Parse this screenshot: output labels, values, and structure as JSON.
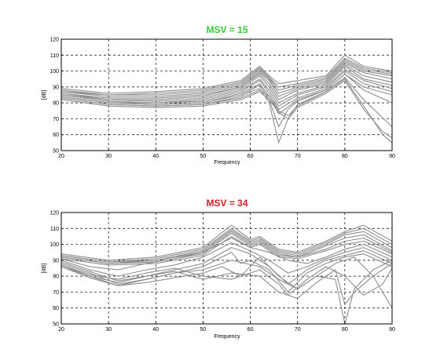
{
  "chart_data": [
    {
      "type": "line",
      "title": "MSV = 15",
      "title_color": "#33cc33",
      "xlabel": "Frequency",
      "ylabel": "[dB]",
      "xlim": [
        20,
        90
      ],
      "ylim": [
        50,
        120
      ],
      "xticks": [
        20,
        30,
        40,
        50,
        60,
        70,
        80,
        90
      ],
      "yticks": [
        50,
        60,
        70,
        80,
        90,
        100,
        110,
        120
      ],
      "grid": true,
      "grid_style": "dashed",
      "line_color": "#8c8c8c",
      "series": [
        {
          "x": [
            20,
            30,
            40,
            50,
            58,
            62,
            64,
            66,
            70,
            76,
            80,
            84,
            90
          ],
          "y": [
            89,
            86,
            87,
            89,
            94,
            103,
            97,
            92,
            94,
            97,
            110,
            103,
            100
          ]
        },
        {
          "x": [
            20,
            30,
            40,
            50,
            58,
            62,
            64,
            66,
            70,
            76,
            80,
            84,
            90
          ],
          "y": [
            88,
            85,
            86,
            88,
            93,
            102,
            96,
            90,
            92,
            96,
            108,
            102,
            99
          ]
        },
        {
          "x": [
            20,
            30,
            40,
            50,
            58,
            62,
            64,
            66,
            70,
            76,
            80,
            84,
            90
          ],
          "y": [
            87,
            85,
            85,
            87,
            92,
            101,
            96,
            88,
            91,
            95,
            107,
            101,
            98
          ]
        },
        {
          "x": [
            20,
            30,
            40,
            50,
            58,
            62,
            64,
            66,
            70,
            76,
            80,
            84,
            90
          ],
          "y": [
            87,
            84,
            84,
            86,
            91,
            100,
            95,
            86,
            90,
            94,
            106,
            100,
            97
          ]
        },
        {
          "x": [
            20,
            30,
            40,
            50,
            58,
            62,
            64,
            66,
            70,
            76,
            80,
            84,
            90
          ],
          "y": [
            86,
            83,
            83,
            85,
            90,
            99,
            94,
            84,
            89,
            93,
            105,
            99,
            95
          ]
        },
        {
          "x": [
            20,
            30,
            40,
            50,
            58,
            62,
            64,
            66,
            70,
            76,
            80,
            84,
            90
          ],
          "y": [
            86,
            82,
            82,
            84,
            90,
            98,
            92,
            82,
            88,
            92,
            104,
            97,
            93
          ]
        },
        {
          "x": [
            20,
            30,
            40,
            50,
            58,
            62,
            64,
            66,
            70,
            76,
            80,
            84,
            90
          ],
          "y": [
            85,
            82,
            81,
            83,
            89,
            97,
            90,
            80,
            86,
            91,
            103,
            95,
            91
          ]
        },
        {
          "x": [
            20,
            30,
            40,
            50,
            58,
            62,
            64,
            66,
            70,
            76,
            80,
            84,
            90
          ],
          "y": [
            85,
            81,
            80,
            82,
            88,
            95,
            88,
            78,
            85,
            90,
            101,
            94,
            89
          ]
        },
        {
          "x": [
            20,
            30,
            40,
            50,
            58,
            62,
            64,
            66,
            70,
            76,
            80,
            84,
            90
          ],
          "y": [
            84,
            80,
            80,
            81,
            87,
            94,
            86,
            76,
            83,
            89,
            100,
            92,
            87
          ]
        },
        {
          "x": [
            20,
            30,
            40,
            50,
            58,
            62,
            64,
            66,
            70,
            76,
            80,
            84,
            90
          ],
          "y": [
            84,
            80,
            79,
            80,
            86,
            92,
            84,
            73,
            82,
            88,
            98,
            90,
            85
          ]
        },
        {
          "x": [
            20,
            30,
            40,
            50,
            58,
            60,
            62,
            64,
            66,
            68,
            70,
            76,
            80,
            84,
            90
          ],
          "y": [
            84,
            80,
            79,
            80,
            85,
            88,
            91,
            82,
            65,
            76,
            81,
            88,
            98,
            88,
            80
          ]
        },
        {
          "x": [
            20,
            30,
            40,
            50,
            58,
            60,
            62,
            64,
            66,
            68,
            70,
            76,
            80,
            84,
            90
          ],
          "y": [
            83,
            79,
            78,
            79,
            84,
            87,
            89,
            80,
            55,
            70,
            79,
            87,
            96,
            82,
            65
          ]
        },
        {
          "x": [
            20,
            30,
            40,
            50,
            58,
            62,
            64,
            66,
            68,
            70,
            76,
            80,
            84,
            88,
            90
          ],
          "y": [
            83,
            79,
            78,
            79,
            83,
            88,
            84,
            75,
            72,
            78,
            87,
            95,
            78,
            60,
            55
          ]
        },
        {
          "x": [
            20,
            30,
            40,
            50,
            58,
            62,
            64,
            66,
            68,
            70,
            76,
            80,
            84,
            88,
            90
          ],
          "y": [
            82,
            78,
            77,
            78,
            82,
            87,
            82,
            74,
            70,
            77,
            86,
            94,
            76,
            62,
            58
          ]
        }
      ]
    },
    {
      "type": "line",
      "title": "MSV = 34",
      "title_color": "#cc2222",
      "xlabel": "Frequency",
      "ylabel": "[dB]",
      "xlim": [
        20,
        90
      ],
      "ylim": [
        50,
        120
      ],
      "xticks": [
        20,
        30,
        40,
        50,
        60,
        70,
        80,
        90
      ],
      "yticks": [
        50,
        60,
        70,
        80,
        90,
        100,
        110,
        120
      ],
      "grid": true,
      "grid_style": "dashed",
      "line_color": "#8c8c8c",
      "series": [
        {
          "x": [
            20,
            30,
            40,
            50,
            56,
            60,
            62,
            66,
            70,
            76,
            80,
            84,
            90
          ],
          "y": [
            94,
            90,
            92,
            98,
            112,
            103,
            105,
            97,
            95,
            102,
            108,
            112,
            102
          ]
        },
        {
          "x": [
            20,
            30,
            40,
            50,
            56,
            60,
            62,
            66,
            70,
            76,
            80,
            84,
            90
          ],
          "y": [
            93,
            89,
            91,
            97,
            110,
            102,
            104,
            96,
            94,
            101,
            107,
            110,
            100
          ]
        },
        {
          "x": [
            20,
            30,
            40,
            50,
            56,
            60,
            62,
            66,
            70,
            76,
            80,
            84,
            90
          ],
          "y": [
            93,
            89,
            90,
            96,
            109,
            101,
            103,
            95,
            93,
            100,
            106,
            108,
            98
          ]
        },
        {
          "x": [
            20,
            30,
            40,
            50,
            56,
            60,
            62,
            66,
            70,
            76,
            80,
            84,
            90
          ],
          "y": [
            92,
            88,
            90,
            95,
            108,
            100,
            102,
            94,
            92,
            99,
            104,
            106,
            96
          ]
        },
        {
          "x": [
            20,
            30,
            40,
            50,
            56,
            60,
            62,
            66,
            70,
            76,
            80,
            84,
            90
          ],
          "y": [
            92,
            88,
            89,
            94,
            107,
            99,
            101,
            93,
            92,
            97,
            102,
            104,
            95
          ]
        },
        {
          "x": [
            20,
            30,
            40,
            50,
            56,
            60,
            62,
            66,
            70,
            76,
            80,
            84,
            90
          ],
          "y": [
            91,
            87,
            88,
            93,
            105,
            98,
            100,
            92,
            91,
            96,
            100,
            102,
            94
          ]
        },
        {
          "x": [
            20,
            26,
            32,
            38,
            44,
            50,
            56,
            60,
            64,
            68,
            72,
            76,
            80,
            84,
            90
          ],
          "y": [
            91,
            86,
            84,
            88,
            91,
            95,
            104,
            98,
            95,
            90,
            88,
            92,
            97,
            100,
            92
          ]
        },
        {
          "x": [
            20,
            26,
            32,
            38,
            44,
            50,
            56,
            60,
            64,
            68,
            72,
            76,
            80,
            84,
            90
          ],
          "y": [
            90,
            84,
            80,
            84,
            87,
            92,
            101,
            96,
            90,
            82,
            86,
            91,
            95,
            98,
            90
          ]
        },
        {
          "x": [
            20,
            26,
            32,
            38,
            44,
            50,
            56,
            60,
            64,
            68,
            72,
            76,
            80,
            84,
            90
          ],
          "y": [
            89,
            83,
            77,
            80,
            84,
            88,
            98,
            94,
            86,
            75,
            84,
            90,
            93,
            96,
            88
          ]
        },
        {
          "x": [
            20,
            26,
            32,
            38,
            44,
            50,
            56,
            58,
            60,
            64,
            68,
            72,
            76,
            80,
            84,
            90
          ],
          "y": [
            88,
            82,
            75,
            78,
            82,
            86,
            95,
            88,
            90,
            84,
            70,
            82,
            88,
            92,
            94,
            86
          ]
        },
        {
          "x": [
            20,
            26,
            32,
            38,
            44,
            50,
            54,
            58,
            62,
            66,
            70,
            74,
            78,
            80,
            82,
            86,
            90
          ],
          "y": [
            87,
            80,
            74,
            76,
            79,
            82,
            86,
            80,
            92,
            80,
            72,
            80,
            78,
            50,
            72,
            84,
            90
          ]
        },
        {
          "x": [
            20,
            26,
            32,
            38,
            44,
            50,
            56,
            62,
            66,
            68,
            72,
            76,
            80,
            84,
            88,
            90
          ],
          "y": [
            87,
            81,
            78,
            82,
            85,
            80,
            78,
            84,
            75,
            68,
            78,
            86,
            80,
            68,
            75,
            85
          ]
        },
        {
          "x": [
            20,
            26,
            32,
            38,
            44,
            50,
            56,
            62,
            66,
            70,
            74,
            78,
            80,
            82,
            86,
            90
          ],
          "y": [
            86,
            80,
            76,
            80,
            83,
            78,
            82,
            80,
            70,
            66,
            76,
            84,
            62,
            70,
            80,
            88
          ]
        },
        {
          "x": [
            20,
            26,
            32,
            38,
            44,
            50,
            56,
            62,
            66,
            70,
            74,
            78,
            82,
            86,
            88,
            90
          ],
          "y": [
            86,
            79,
            74,
            78,
            82,
            84,
            90,
            86,
            78,
            72,
            80,
            88,
            92,
            80,
            70,
            60
          ]
        }
      ]
    }
  ]
}
